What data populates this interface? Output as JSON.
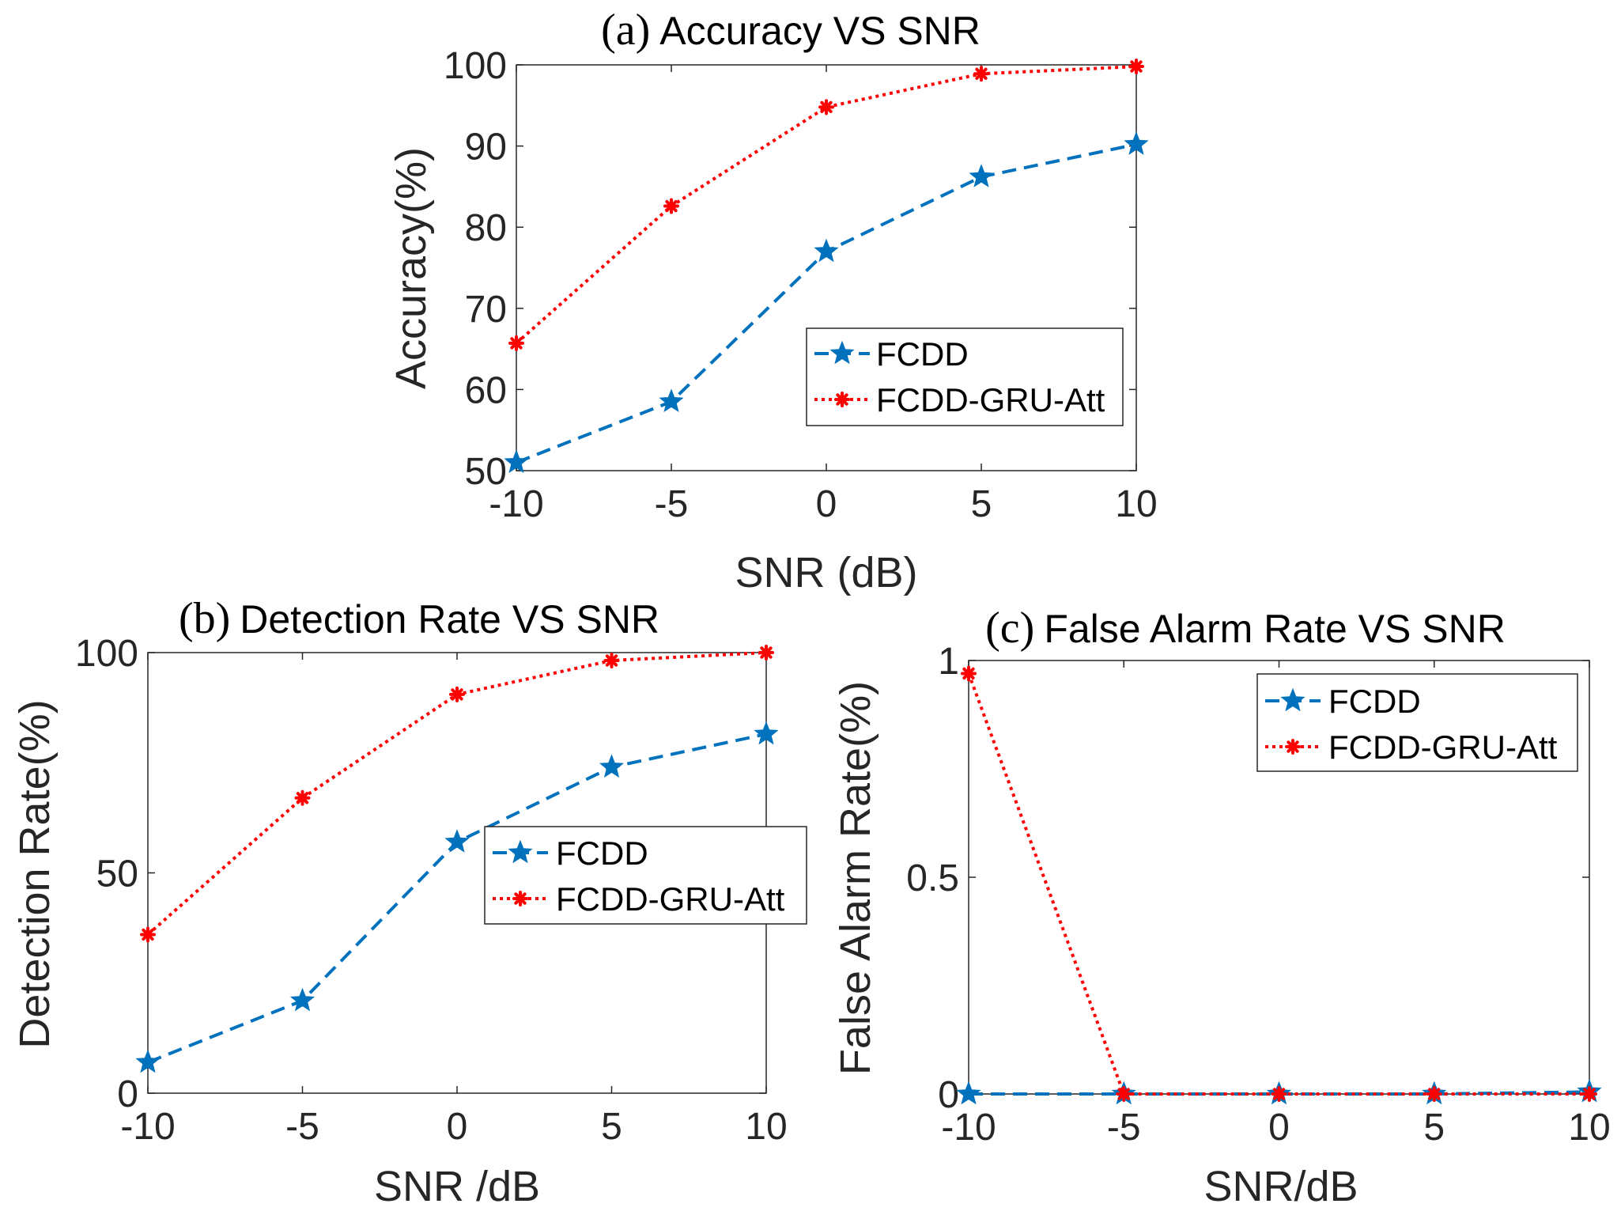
{
  "chart_data": [
    {
      "type": "line",
      "title_prefix": "(a)",
      "title": "Accuracy VS SNR",
      "xlabel": "SNR (dB)",
      "ylabel": "Accuracy(%)",
      "x": [
        -10,
        -5,
        0,
        5,
        10
      ],
      "xlim": [
        -10,
        10
      ],
      "ylim": [
        50,
        100
      ],
      "xticks": [
        "-10",
        "-5",
        "0",
        "5",
        "10"
      ],
      "yticks": [
        "50",
        "60",
        "70",
        "80",
        "90",
        "100"
      ],
      "series": [
        {
          "name": "FCDD",
          "values": [
            51,
            58.5,
            77,
            86.2,
            90.2
          ],
          "color": "#0072BD",
          "marker": "star",
          "dash": "dashed"
        },
        {
          "name": "FCDD-GRU-Att",
          "values": [
            65.7,
            82.6,
            94.8,
            98.9,
            99.8
          ],
          "color": "#FF0000",
          "marker": "asterisk",
          "dash": "dotted"
        }
      ],
      "legend": "bottom-right"
    },
    {
      "type": "line",
      "title_prefix": "(b)",
      "title": "Detection Rate VS SNR",
      "xlabel": "SNR /dB",
      "ylabel": "Detection Rate(%)",
      "x": [
        -10,
        -5,
        0,
        5,
        10
      ],
      "xlim": [
        -10,
        10
      ],
      "ylim": [
        0,
        100
      ],
      "xticks": [
        "-10",
        "-5",
        "0",
        "5",
        "10"
      ],
      "yticks": [
        "0",
        "50",
        "100"
      ],
      "series": [
        {
          "name": "FCDD",
          "values": [
            7,
            21,
            57,
            74,
            81.5
          ],
          "color": "#0072BD",
          "marker": "star",
          "dash": "dashed"
        },
        {
          "name": "FCDD-GRU-Att",
          "values": [
            36,
            67,
            90.5,
            98.2,
            100
          ],
          "color": "#FF0000",
          "marker": "asterisk",
          "dash": "dotted"
        }
      ],
      "legend": "middle-right"
    },
    {
      "type": "line",
      "title_prefix": "(c)",
      "title": "False Alarm Rate VS SNR",
      "xlabel": "SNR/dB",
      "ylabel": "False Alarm Rate(%)",
      "x": [
        -10,
        -5,
        0,
        5,
        10
      ],
      "xlim": [
        -10,
        10
      ],
      "ylim": [
        0,
        1
      ],
      "xticks": [
        "-10",
        "-5",
        "0",
        "5",
        "10"
      ],
      "yticks": [
        "0",
        "0.5",
        "1"
      ],
      "series": [
        {
          "name": "FCDD",
          "values": [
            0,
            0,
            0,
            0,
            0.005
          ],
          "color": "#0072BD",
          "marker": "star",
          "dash": "dashed"
        },
        {
          "name": "FCDD-GRU-Att",
          "values": [
            0.97,
            0,
            0,
            0,
            0
          ],
          "color": "#FF0000",
          "marker": "asterisk",
          "dash": "dotted"
        }
      ],
      "legend": "top-right"
    }
  ]
}
